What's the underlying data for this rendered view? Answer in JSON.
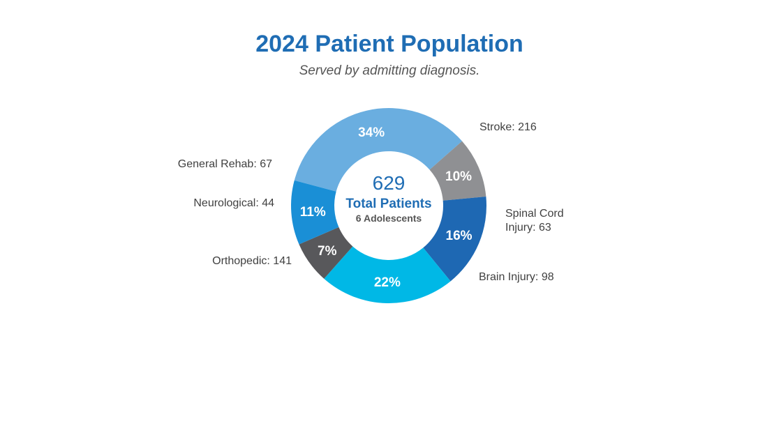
{
  "chart_data": {
    "type": "pie",
    "title": "2024 Patient Population",
    "subtitle": "Served by admitting diagnosis.",
    "center": {
      "total": "629",
      "label": "Total Patients",
      "note": "6 Adolescents"
    },
    "slices": [
      {
        "name": "Stroke",
        "label_lines": [
          "Stroke: 216"
        ],
        "value": 216,
        "pct_label": "34%",
        "color": "#6aaee0"
      },
      {
        "name": "Spinal Cord Injury",
        "label_lines": [
          "Spinal Cord",
          "Injury: 63"
        ],
        "value": 63,
        "pct_label": "10%",
        "color": "#8f9093"
      },
      {
        "name": "Brain Injury",
        "label_lines": [
          "Brain Injury: 98"
        ],
        "value": 98,
        "pct_label": "16%",
        "color": "#1e68b3"
      },
      {
        "name": "Orthopedic",
        "label_lines": [
          "Orthopedic: 141"
        ],
        "value": 141,
        "pct_label": "22%",
        "color": "#00b8e6"
      },
      {
        "name": "Neurological",
        "label_lines": [
          "Neurological: 44"
        ],
        "value": 44,
        "pct_label": "7%",
        "color": "#58585b"
      },
      {
        "name": "General Rehab",
        "label_lines": [
          "General Rehab: 67"
        ],
        "value": 67,
        "pct_label": "11%",
        "color": "#1a8fd6"
      }
    ]
  }
}
